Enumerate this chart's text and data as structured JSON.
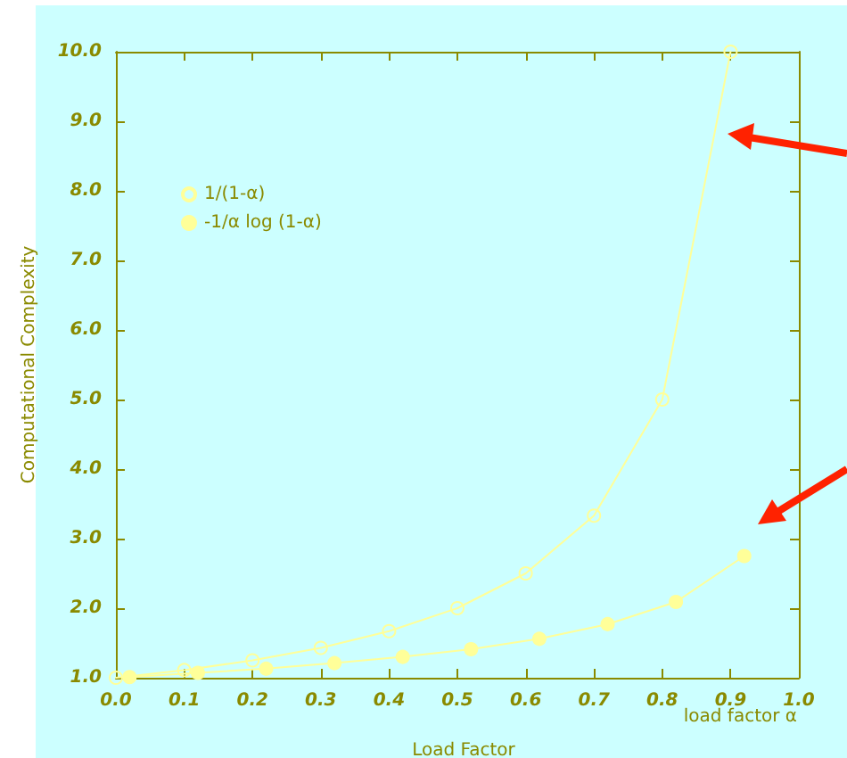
{
  "chart_data": {
    "type": "line",
    "xlabel": "Load Factor",
    "ylabel": "Computational Complexity",
    "annotations": [
      "load factor α"
    ],
    "series": [
      {
        "name": "1/(1-α)",
        "color": "#ffff99",
        "x": [
          0,
          0.1,
          0.2,
          0.3,
          0.4,
          0.5,
          0.6,
          0.7,
          0.8,
          0.9
        ],
        "values": [
          1,
          1.11,
          1.25,
          1.43,
          1.67,
          2,
          2.5,
          3.33,
          5,
          10
        ]
      },
      {
        "name": "-1/α log (1-α)",
        "color": "#ffff99",
        "x": [
          0.02,
          0.12,
          0.22,
          0.32,
          0.42,
          0.52,
          0.62,
          0.72,
          0.82,
          0.92
        ],
        "values": [
          1.01,
          1.07,
          1.13,
          1.21,
          1.3,
          1.41,
          1.56,
          1.77,
          2.09,
          2.75
        ]
      }
    ],
    "xlim": [
      0,
      1
    ],
    "xticks": [
      {
        "value": 0,
        "label": "0.0"
      },
      0.1,
      0.2,
      0.3,
      0.4,
      0.5,
      0.6,
      0.7,
      0.8,
      0.9,
      {
        "value": 1,
        "label": "1.0"
      }
    ],
    "ylim": [
      1,
      10
    ],
    "yticks": [
      {
        "value": 1,
        "label": "1.0"
      },
      {
        "value": 2,
        "label": "2.0"
      },
      {
        "value": 3,
        "label": "3.0"
      },
      {
        "value": 4,
        "label": "4.0"
      },
      {
        "value": 5,
        "label": "5.0"
      },
      {
        "value": 6,
        "label": "6.0"
      },
      {
        "value": 7,
        "label": "7.0"
      },
      {
        "value": 8,
        "label": "8.0"
      },
      {
        "value": 9,
        "label": "9.0"
      },
      {
        "value": 10,
        "label": "10.0"
      }
    ],
    "grid": false,
    "legend": "top left",
    "line_style": "solid",
    "marker": "circle"
  }
}
